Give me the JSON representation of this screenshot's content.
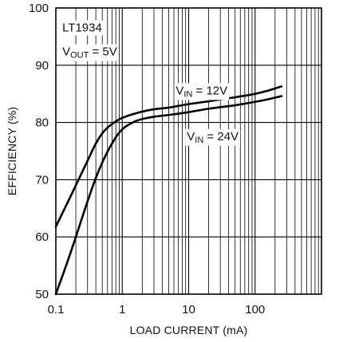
{
  "chart_data": {
    "type": "line",
    "xlabel": "LOAD CURRENT (mA)",
    "ylabel": "EFFICIENCY (%)",
    "xscale": "log",
    "xlim": [
      0.1,
      1000
    ],
    "ylim": [
      50,
      100
    ],
    "grid": true,
    "x_ticks": [
      {
        "value": 0.1,
        "label": "0.1"
      },
      {
        "value": 1,
        "label": "1"
      },
      {
        "value": 10,
        "label": "10"
      },
      {
        "value": 100,
        "label": "100"
      }
    ],
    "y_ticks": [
      {
        "value": 50,
        "label": "50"
      },
      {
        "value": 60,
        "label": "60"
      },
      {
        "value": 70,
        "label": "70"
      },
      {
        "value": 80,
        "label": "80"
      },
      {
        "value": 90,
        "label": "90"
      },
      {
        "value": 100,
        "label": "100"
      }
    ],
    "annotations": [
      {
        "parts": [
          {
            "text": "LT1934"
          }
        ]
      },
      {
        "parts": [
          {
            "text": "V"
          },
          {
            "text": "OUT",
            "sub": true
          },
          {
            "text": " = 5V"
          }
        ]
      },
      {
        "parts": [
          {
            "text": "V"
          },
          {
            "text": "IN",
            "sub": true
          },
          {
            "text": " = 12V"
          }
        ]
      },
      {
        "parts": [
          {
            "text": "V"
          },
          {
            "text": "IN",
            "sub": true
          },
          {
            "text": " = 24V"
          }
        ]
      }
    ],
    "series": [
      {
        "x": [
          0.1,
          0.15,
          0.2,
          0.3,
          0.4,
          0.5,
          0.6,
          0.7,
          0.8,
          1,
          1.5,
          2,
          3,
          5,
          10,
          20,
          50,
          100,
          150,
          250
        ],
        "y": [
          61.8,
          66.0,
          69.0,
          73.3,
          76.3,
          78.1,
          79.1,
          79.7,
          80.2,
          80.8,
          81.5,
          81.9,
          82.3,
          82.6,
          83.2,
          83.7,
          84.4,
          85.0,
          85.5,
          86.3
        ]
      },
      {
        "x": [
          0.1,
          0.15,
          0.2,
          0.3,
          0.4,
          0.5,
          0.6,
          0.7,
          0.8,
          1,
          1.5,
          2,
          3,
          5,
          10,
          20,
          50,
          100,
          150,
          250
        ],
        "y": [
          50.0,
          55.7,
          60.0,
          66.2,
          70.3,
          73.0,
          74.9,
          76.3,
          77.4,
          78.8,
          80.1,
          80.6,
          81.0,
          81.3,
          81.8,
          82.4,
          83.0,
          83.6,
          84.0,
          84.6
        ]
      }
    ],
    "colors": {
      "line": "#000000",
      "grid": "#000000",
      "background": "#ffffff"
    }
  }
}
